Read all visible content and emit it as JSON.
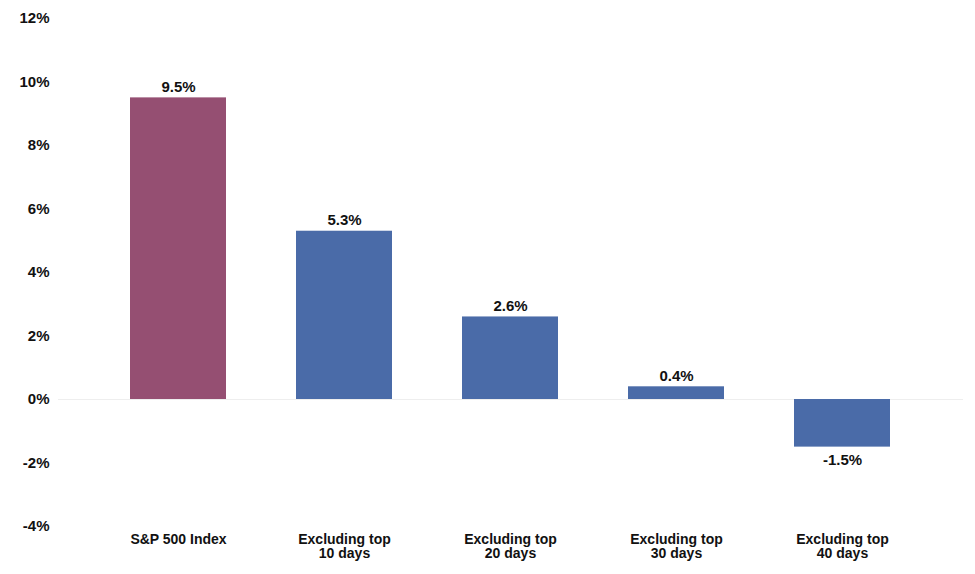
{
  "chart_data": {
    "type": "bar",
    "categories": [
      "S&P 500 Index",
      "Excluding top\n10 days",
      "Excluding top\n20 days",
      "Excluding top\n30 days",
      "Excluding top\n40 days"
    ],
    "values": [
      9.5,
      5.3,
      2.6,
      0.4,
      -1.5
    ],
    "value_labels": [
      "9.5%",
      "5.3%",
      "2.6%",
      "0.4%",
      "-1.5%"
    ],
    "colors": [
      "#954f72",
      "#4a6ba8",
      "#4a6ba8",
      "#4a6ba8",
      "#4a6ba8"
    ],
    "ylim": [
      -4,
      12
    ],
    "yticks": [
      {
        "value": -4,
        "label": "-4%"
      },
      {
        "value": -2,
        "label": "-2%"
      },
      {
        "value": 0,
        "label": "0%"
      },
      {
        "value": 2,
        "label": "2%"
      },
      {
        "value": 4,
        "label": "4%"
      },
      {
        "value": 6,
        "label": "6%"
      },
      {
        "value": 8,
        "label": "8%"
      },
      {
        "value": 10,
        "label": "10%"
      },
      {
        "value": 12,
        "label": "12%"
      }
    ],
    "grid": false,
    "data_labels": true
  }
}
